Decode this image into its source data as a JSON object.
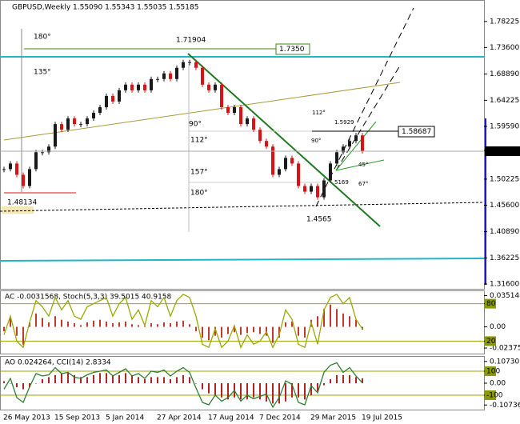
{
  "chart_data": [
    {
      "type": "candlestick",
      "title": "GBPUSD,Weekly  1.55090 1.55343 1.55035 1.55185",
      "categories": [
        "26 May 2013",
        null,
        null,
        null,
        null,
        null,
        null,
        null,
        "15 Sep 2013",
        null,
        null,
        null,
        null,
        null,
        null,
        null,
        "5 Jan 2014",
        null,
        null,
        null,
        null,
        null,
        null,
        null,
        "27 Apr 2014",
        null,
        null,
        null,
        null,
        null,
        null,
        null,
        "17 Aug 2014",
        null,
        null,
        null,
        null,
        null,
        null,
        null,
        "7 Dec 2014",
        null,
        null,
        null,
        null,
        null,
        null,
        null,
        "29 Mar 2015",
        null,
        null,
        null,
        null,
        null,
        null,
        null,
        "19 Jul 2015"
      ],
      "values": [
        1.52,
        1.53,
        1.51,
        1.49,
        1.52,
        1.55,
        1.55,
        1.56,
        1.6,
        1.59,
        1.61,
        1.6,
        1.6,
        1.61,
        1.62,
        1.63,
        1.65,
        1.64,
        1.66,
        1.67,
        1.66,
        1.67,
        1.66,
        1.68,
        1.68,
        1.69,
        1.68,
        1.7,
        1.71,
        1.71,
        1.7,
        1.67,
        1.66,
        1.67,
        1.63,
        1.62,
        1.63,
        1.6,
        1.61,
        1.59,
        1.57,
        1.56,
        1.51,
        1.52,
        1.54,
        1.53,
        1.49,
        1.48,
        1.49,
        1.47,
        1.5,
        1.53,
        1.55,
        1.56,
        1.57,
        1.58,
        1.55185
      ],
      "color_up": "#1a1a1a",
      "color_down": "#dd1111",
      "last_price": 1.55185,
      "ylim": [
        1.3075,
        1.8175
      ],
      "yticks": [
        1.78225,
        {
          "value": 1.736,
          "label": "1.73600"
        },
        {
          "value": 1.6889,
          "label": "1.68890"
        },
        1.64225,
        {
          "value": 1.5959,
          "label": "1.59590"
        },
        1.50225,
        {
          "value": 1.456,
          "label": "1.45600"
        },
        {
          "value": 1.4089,
          "label": "1.40890"
        },
        1.36225,
        {
          "value": 1.316,
          "label": "1.31600"
        }
      ],
      "annotations": [
        "180°",
        "135°",
        "90°",
        "112°",
        "157°",
        "180°",
        "1.71904",
        "1.7350",
        "1.58687",
        "1.48134",
        "1.4565",
        "112°",
        "90°",
        "1.5929",
        "5169",
        "45°",
        "67°"
      ]
    },
    {
      "type": "oscillator",
      "title": "AC -0.0031568, Stoch(5,3,3) 39.5015 40.9158",
      "series": [
        {
          "name": "AC",
          "type": "bar",
          "color": "#c0392b",
          "values": [
            -0.005,
            0.01,
            -0.01,
            -0.02,
            0.005,
            0.015,
            0.01,
            0.005,
            0.012,
            0.008,
            0.006,
            0.004,
            0.002,
            0.005,
            0.007,
            0.008,
            0.006,
            0.004,
            0.005,
            0.006,
            0.003,
            0.002,
            0.001,
            0.004,
            0.003,
            0.005,
            0.004,
            0.006,
            0.007,
            0.003,
            -0.005,
            -0.012,
            -0.015,
            -0.01,
            -0.012,
            -0.008,
            -0.006,
            -0.009,
            -0.007,
            -0.006,
            -0.008,
            -0.01,
            -0.018,
            -0.012,
            0.005,
            0.006,
            -0.01,
            -0.012,
            0.008,
            0.012,
            0.02,
            0.025,
            0.02,
            0.015,
            0.012,
            0.008,
            -0.0031568
          ]
        },
        {
          "name": "Stoch(5,3,3)",
          "type": "line",
          "axis": "y2",
          "color": "#9aa800",
          "values": [
            30,
            60,
            20,
            10,
            50,
            85,
            75,
            60,
            90,
            70,
            85,
            60,
            55,
            75,
            80,
            85,
            90,
            60,
            80,
            90,
            55,
            70,
            45,
            85,
            75,
            90,
            60,
            85,
            95,
            90,
            60,
            15,
            10,
            40,
            10,
            20,
            45,
            10,
            30,
            15,
            20,
            35,
            10,
            30,
            70,
            55,
            15,
            10,
            50,
            15,
            70,
            90,
            95,
            80,
            90,
            55,
            39.5015
          ]
        }
      ],
      "ylim": [
        -0.03,
        0.04
      ],
      "yticks": [
        {
          "value": 0.03514,
          "label": "0.035140"
        },
        {
          "value": 0,
          "label": "0.00"
        },
        -0.023755
      ],
      "y2lim": [
        0,
        100
      ],
      "y2ticks": [
        80,
        20
      ]
    },
    {
      "type": "oscillator",
      "title": "AO 0.024264, CCI(14) 2.8334",
      "series": [
        {
          "name": "AO",
          "type": "bar",
          "color": "#b22222",
          "values": [
            0.01,
            0,
            -0.02,
            -0.03,
            -0.02,
            0,
            0.02,
            0.03,
            0.04,
            0.05,
            0.05,
            0.04,
            0.03,
            0.03,
            0.04,
            0.05,
            0.05,
            0.04,
            0.04,
            0.05,
            0.04,
            0.03,
            0.02,
            0.03,
            0.03,
            0.03,
            0.02,
            0.03,
            0.04,
            0.03,
            0,
            -0.03,
            -0.05,
            -0.06,
            -0.07,
            -0.08,
            -0.07,
            -0.08,
            -0.08,
            -0.07,
            -0.08,
            -0.09,
            -0.1,
            -0.1,
            -0.09,
            -0.07,
            -0.07,
            -0.08,
            -0.06,
            -0.04,
            -0.01,
            0.02,
            0.04,
            0.04,
            0.04,
            0.03,
            0.024264
          ]
        },
        {
          "name": "CCI(14)",
          "type": "line",
          "axis": "y2",
          "color": "#2e7d32",
          "values": [
            -50,
            40,
            -120,
            -160,
            -30,
            80,
            60,
            70,
            130,
            80,
            90,
            50,
            40,
            70,
            90,
            100,
            110,
            60,
            90,
            120,
            60,
            80,
            40,
            100,
            90,
            110,
            60,
            100,
            130,
            90,
            -40,
            -160,
            -180,
            -100,
            -150,
            -120,
            -60,
            -150,
            -100,
            -130,
            -110,
            -90,
            -200,
            -120,
            20,
            -10,
            -160,
            -180,
            -20,
            -80,
            90,
            150,
            170,
            90,
            130,
            60,
            2.8334
          ]
        }
      ],
      "ylim": [
        -0.13,
        0.13
      ],
      "yticks": [
        0.107305,
        {
          "value": 0,
          "label": "0.00"
        },
        -0.107361
      ],
      "y2lim": [
        -220,
        220
      ],
      "y2ticks": [
        100,
        -100
      ]
    }
  ]
}
